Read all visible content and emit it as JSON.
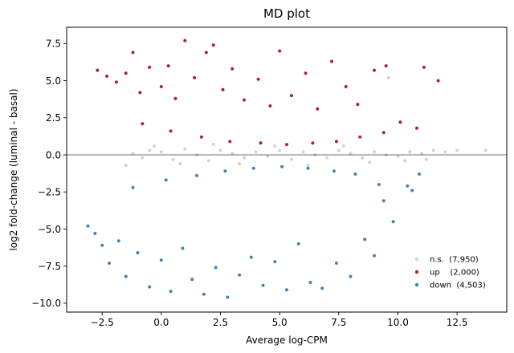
{
  "chart_data": {
    "type": "scatter",
    "title": "MD plot",
    "xlabel": "Average log-CPM",
    "ylabel": "log2 fold-change (luminal - basal)",
    "xlim": [
      -4.0,
      14.6
    ],
    "ylim": [
      -10.6,
      8.6
    ],
    "xticks": [
      -2.5,
      0.0,
      2.5,
      5.0,
      7.5,
      10.0,
      12.5
    ],
    "xtick_labels": [
      "−2.5",
      "0.0",
      "2.5",
      "5.0",
      "7.5",
      "10.0",
      "12.5"
    ],
    "yticks": [
      -10.0,
      -7.5,
      -5.0,
      -2.5,
      0.0,
      2.5,
      5.0,
      7.5
    ],
    "ytick_labels": [
      "−10.0",
      "−7.5",
      "−5.0",
      "−2.5",
      "0.0",
      "2.5",
      "5.0",
      "7.5"
    ],
    "grid": false,
    "reference_line_y": 0,
    "legend_position": "bottom-right",
    "series": [
      {
        "key": "ns",
        "name": "n.s.  (7,950)",
        "color": "#d3d3d3",
        "points": [
          [
            -1.2,
            0.1
          ],
          [
            -0.8,
            -0.2
          ],
          [
            -0.5,
            0.3
          ],
          [
            0.0,
            0.2
          ],
          [
            0.5,
            -0.3
          ],
          [
            1.0,
            0.4
          ],
          [
            1.5,
            0.0
          ],
          [
            2.0,
            -0.4
          ],
          [
            2.5,
            0.3
          ],
          [
            3.0,
            0.1
          ],
          [
            3.5,
            -0.2
          ],
          [
            4.0,
            0.2
          ],
          [
            4.5,
            -0.1
          ],
          [
            5.0,
            0.3
          ],
          [
            5.5,
            -0.3
          ],
          [
            6.0,
            0.2
          ],
          [
            6.5,
            0.0
          ],
          [
            7.0,
            -0.2
          ],
          [
            7.5,
            0.3
          ],
          [
            8.0,
            0.1
          ],
          [
            8.5,
            -0.2
          ],
          [
            9.0,
            0.2
          ],
          [
            9.5,
            0.0
          ],
          [
            10.0,
            -0.1
          ],
          [
            10.5,
            0.2
          ],
          [
            11.0,
            0.1
          ],
          [
            11.5,
            0.3
          ],
          [
            12.0,
            0.2
          ],
          [
            12.5,
            0.3
          ],
          [
            13.7,
            0.3
          ],
          [
            -1.5,
            -0.7
          ],
          [
            -0.3,
            0.6
          ],
          [
            0.8,
            -0.6
          ],
          [
            2.2,
            0.7
          ],
          [
            3.3,
            -0.6
          ],
          [
            4.8,
            0.6
          ],
          [
            6.2,
            -0.7
          ],
          [
            7.7,
            0.6
          ],
          [
            8.8,
            -0.5
          ],
          [
            9.6,
            5.2
          ],
          [
            10.3,
            -0.4
          ],
          [
            11.2,
            -0.3
          ]
        ]
      },
      {
        "key": "up",
        "name": "up    (2,000)",
        "color": "#b22222",
        "points": [
          [
            -2.7,
            5.7
          ],
          [
            -2.3,
            5.3
          ],
          [
            -1.9,
            4.9
          ],
          [
            -1.5,
            5.5
          ],
          [
            -1.2,
            6.9
          ],
          [
            -0.9,
            4.2
          ],
          [
            -0.5,
            5.9
          ],
          [
            0.0,
            4.6
          ],
          [
            0.3,
            6.0
          ],
          [
            0.6,
            3.8
          ],
          [
            1.0,
            7.7
          ],
          [
            1.4,
            5.2
          ],
          [
            1.9,
            6.9
          ],
          [
            2.2,
            7.4
          ],
          [
            2.6,
            4.4
          ],
          [
            3.0,
            5.8
          ],
          [
            3.5,
            3.7
          ],
          [
            4.1,
            5.1
          ],
          [
            4.6,
            3.3
          ],
          [
            5.0,
            7.0
          ],
          [
            5.5,
            4.0
          ],
          [
            6.1,
            5.5
          ],
          [
            6.6,
            3.1
          ],
          [
            7.2,
            6.3
          ],
          [
            7.8,
            4.6
          ],
          [
            8.3,
            3.4
          ],
          [
            9.0,
            5.7
          ],
          [
            9.5,
            6.0
          ],
          [
            10.1,
            2.2
          ],
          [
            10.8,
            1.8
          ],
          [
            11.1,
            5.9
          ],
          [
            11.7,
            5.0
          ],
          [
            -0.8,
            2.1
          ],
          [
            0.4,
            1.6
          ],
          [
            1.7,
            1.2
          ],
          [
            2.9,
            0.9
          ],
          [
            4.2,
            0.8
          ],
          [
            5.3,
            0.7
          ],
          [
            6.4,
            0.8
          ],
          [
            7.4,
            0.9
          ],
          [
            8.4,
            1.2
          ],
          [
            9.4,
            1.5
          ]
        ]
      },
      {
        "key": "down",
        "name": "down  (4,503)",
        "color": "#4682b4",
        "points": [
          [
            -3.1,
            -4.8
          ],
          [
            -2.8,
            -5.3
          ],
          [
            -2.5,
            -6.1
          ],
          [
            -2.2,
            -7.3
          ],
          [
            -1.8,
            -5.8
          ],
          [
            -1.5,
            -8.2
          ],
          [
            -1.0,
            -6.6
          ],
          [
            -0.5,
            -8.9
          ],
          [
            0.0,
            -7.1
          ],
          [
            0.4,
            -9.2
          ],
          [
            0.9,
            -6.3
          ],
          [
            1.3,
            -8.4
          ],
          [
            1.8,
            -9.4
          ],
          [
            2.3,
            -7.6
          ],
          [
            2.8,
            -9.6
          ],
          [
            3.3,
            -8.1
          ],
          [
            3.8,
            -6.9
          ],
          [
            4.3,
            -8.8
          ],
          [
            4.8,
            -7.2
          ],
          [
            5.3,
            -9.1
          ],
          [
            5.8,
            -6.0
          ],
          [
            6.3,
            -8.6
          ],
          [
            6.8,
            -9.0
          ],
          [
            7.4,
            -7.3
          ],
          [
            8.0,
            -8.2
          ],
          [
            8.6,
            -5.7
          ],
          [
            9.0,
            -6.8
          ],
          [
            9.8,
            -4.5
          ],
          [
            10.4,
            -2.1
          ],
          [
            10.9,
            -1.3
          ],
          [
            -1.2,
            -2.2
          ],
          [
            0.2,
            -1.7
          ],
          [
            1.5,
            -1.4
          ],
          [
            2.7,
            -1.1
          ],
          [
            3.9,
            -0.9
          ],
          [
            5.1,
            -0.8
          ],
          [
            6.2,
            -0.9
          ],
          [
            7.3,
            -1.1
          ],
          [
            8.2,
            -1.3
          ],
          [
            9.2,
            -2.0
          ],
          [
            10.6,
            -2.4
          ],
          [
            9.4,
            -3.1
          ]
        ]
      }
    ]
  }
}
